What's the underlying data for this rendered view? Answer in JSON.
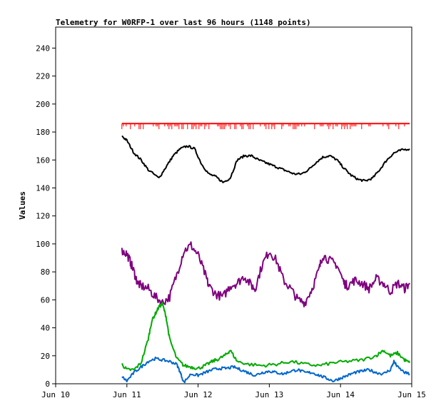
{
  "chart_data": {
    "type": "line",
    "title": "Telemetry for W0RFP-1 over last 96 hours (1148 points)",
    "ylabel": "Values",
    "xlabel": "",
    "ylim": [
      0,
      255
    ],
    "xlim": [
      0,
      5
    ],
    "yticks": [
      0,
      20,
      40,
      60,
      80,
      100,
      120,
      140,
      160,
      180,
      200,
      220,
      240
    ],
    "xtick_labels": [
      "Jun 10",
      "Jun 11",
      "Jun 12",
      "Jun 13",
      "Jun 14",
      "Jun 15"
    ],
    "grid": false,
    "series": [
      {
        "color": "#ff0000",
        "x": [
          0.93,
          1.2,
          1.5,
          1.8,
          2.1,
          2.4,
          2.7,
          3.0,
          3.3,
          3.6,
          3.9,
          4.2,
          4.5,
          4.8,
          4.97
        ],
        "values": [
          186,
          186,
          186,
          186,
          186,
          186,
          186,
          186,
          186,
          186,
          186,
          186,
          186,
          186,
          186
        ],
        "dips": [
          184,
          182
        ]
      },
      {
        "color": "#000000",
        "x": [
          0.93,
          1.0,
          1.1,
          1.2,
          1.3,
          1.45,
          1.55,
          1.65,
          1.75,
          1.85,
          1.95,
          2.05,
          2.15,
          2.25,
          2.35,
          2.45,
          2.55,
          2.65,
          2.75,
          2.85,
          2.95,
          3.05,
          3.15,
          3.25,
          3.35,
          3.45,
          3.55,
          3.65,
          3.75,
          3.85,
          3.95,
          4.05,
          4.15,
          4.25,
          4.35,
          4.45,
          4.55,
          4.65,
          4.75,
          4.85,
          4.97
        ],
        "values": [
          177,
          174,
          165,
          160,
          153,
          147,
          155,
          163,
          168,
          170,
          168,
          157,
          150,
          148,
          144,
          147,
          160,
          163,
          163,
          160,
          158,
          156,
          154,
          152,
          150,
          150,
          153,
          158,
          162,
          163,
          160,
          154,
          149,
          146,
          145,
          147,
          153,
          160,
          165,
          167,
          168
        ]
      },
      {
        "color": "#7f007f",
        "x": [
          0.93,
          1.0,
          1.05,
          1.1,
          1.15,
          1.2,
          1.3,
          1.4,
          1.5,
          1.6,
          1.7,
          1.8,
          1.9,
          2.0,
          2.1,
          2.15,
          2.25,
          2.35,
          2.45,
          2.55,
          2.65,
          2.75,
          2.8,
          2.9,
          3.0,
          3.1,
          3.2,
          3.3,
          3.4,
          3.5,
          3.6,
          3.7,
          3.75,
          3.85,
          3.95,
          4.05,
          4.1,
          4.2,
          4.3,
          4.4,
          4.5,
          4.6,
          4.7,
          4.8,
          4.9,
          4.97
        ],
        "values": [
          95,
          93,
          87,
          80,
          72,
          70,
          68,
          62,
          58,
          62,
          78,
          95,
          99,
          92,
          78,
          70,
          64,
          62,
          70,
          72,
          77,
          70,
          68,
          85,
          95,
          88,
          74,
          68,
          60,
          58,
          68,
          82,
          92,
          88,
          85,
          72,
          70,
          74,
          72,
          68,
          75,
          72,
          66,
          72,
          68,
          72
        ]
      },
      {
        "color": "#00aa00",
        "x": [
          0.93,
          1.0,
          1.1,
          1.2,
          1.3,
          1.35,
          1.4,
          1.45,
          1.5,
          1.55,
          1.6,
          1.7,
          1.8,
          1.9,
          2.0,
          2.1,
          2.2,
          2.3,
          2.4,
          2.45,
          2.55,
          2.7,
          2.9,
          3.1,
          3.3,
          3.5,
          3.7,
          3.9,
          4.1,
          4.3,
          4.5,
          4.6,
          4.7,
          4.8,
          4.9,
          4.97
        ],
        "values": [
          14,
          10,
          10,
          15,
          32,
          45,
          50,
          55,
          57,
          48,
          32,
          18,
          13,
          12,
          11,
          13,
          16,
          18,
          21,
          24,
          16,
          14,
          13,
          14,
          16,
          14,
          13,
          15,
          16,
          17,
          20,
          24,
          20,
          22,
          17,
          15
        ]
      },
      {
        "color": "#0066cc",
        "x": [
          0.93,
          1.0,
          1.1,
          1.2,
          1.3,
          1.4,
          1.5,
          1.6,
          1.7,
          1.75,
          1.8,
          1.9,
          2.0,
          2.1,
          2.2,
          2.3,
          2.4,
          2.5,
          2.6,
          2.7,
          2.8,
          2.9,
          3.0,
          3.1,
          3.2,
          3.3,
          3.4,
          3.5,
          3.6,
          3.7,
          3.8,
          3.9,
          4.0,
          4.1,
          4.2,
          4.3,
          4.4,
          4.5,
          4.6,
          4.7,
          4.75,
          4.8,
          4.9,
          4.97
        ],
        "values": [
          5,
          2,
          8,
          12,
          16,
          18,
          17,
          16,
          14,
          8,
          1,
          7,
          6,
          8,
          10,
          11,
          11,
          12,
          10,
          8,
          6,
          8,
          9,
          8,
          7,
          9,
          10,
          8,
          8,
          6,
          4,
          2,
          4,
          6,
          8,
          9,
          10,
          8,
          7,
          10,
          16,
          12,
          8,
          7
        ]
      }
    ]
  }
}
